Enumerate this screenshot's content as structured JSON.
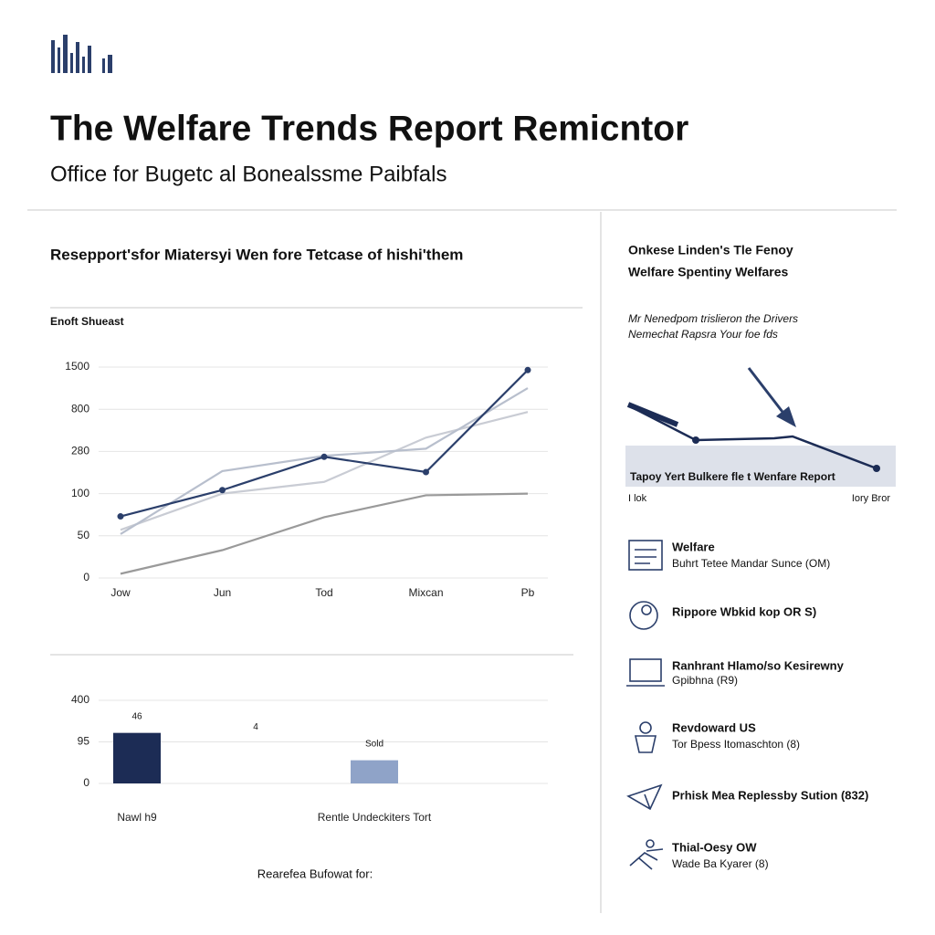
{
  "header": {
    "title": "The Welfare Trends Report Remicntor",
    "subtitle": "Office for Bugetc al Bonealssme Paibfals"
  },
  "section_title": "Resepport'sfor Miatersyi Wen fore Tetcase of hishi'them",
  "chart_data": [
    {
      "type": "line",
      "title": "Enoft Shueast",
      "categories": [
        "Jow",
        "Jun",
        "Tod",
        "Mixcan",
        "Pb"
      ],
      "ylim": [
        0,
        1500
      ],
      "yticks": [
        0,
        50,
        100,
        280,
        800,
        1500
      ],
      "grid": true,
      "series": [
        {
          "color": "#c9ccd4",
          "values": [
            57,
            100,
            150,
            450,
            766
          ]
        },
        {
          "color": "#b8bfcd",
          "values": [
            52,
            196,
            261,
            314,
            1150
          ]
        },
        {
          "color": "#9a9a9a",
          "values": [
            5,
            33,
            72,
            98,
            100
          ]
        },
        {
          "color": "#2b3f6b",
          "markers": true,
          "values": [
            73,
            115,
            257,
            192,
            1450
          ]
        }
      ]
    },
    {
      "type": "bar",
      "categories": [
        "Nawl h9",
        null,
        "Rentle Undeckiters Tort"
      ],
      "values": [
        161,
        null,
        53
      ],
      "colors": [
        "#1c2c55",
        null,
        "#8fa3c8"
      ],
      "annotations": [
        "46",
        "4",
        "Sold"
      ],
      "ylim": [
        0,
        400
      ],
      "yticks": [
        0,
        95,
        400
      ],
      "grid": true,
      "caption": "Rearefea Bufowat for:"
    }
  ],
  "sidebar": {
    "title": "Onkese Linden's Tle Fenoy",
    "subtitle": "Welfare Spentiny Welfares",
    "description": [
      "Mr Nenedpom trislieron the Drivers",
      "Nemechat Rapsra Your foe fds"
    ],
    "diagram_label": "Tapoy Yert Bulkere fle t Wenfare Report",
    "diagram_left": "I lok",
    "diagram_right": "Iory Bror",
    "items": [
      {
        "title": "Welfare",
        "text": "Buhrt Tetee Mandar Sunce (OM)"
      },
      {
        "title": "Rippore Wbkid kop OR S)"
      },
      {
        "title": "Ranhrant Hlamo/so Kesirewny",
        "text": "Gpibhna (R9)"
      },
      {
        "title": "Revdoward US",
        "text": "Tor Bpess Itomaschton (8)"
      },
      {
        "title": "Prhisk  Mea Replessby Sution (832)"
      },
      {
        "title": "Thial-Oesy OW",
        "text": "Wade Ba Kyarer (8)"
      }
    ]
  }
}
